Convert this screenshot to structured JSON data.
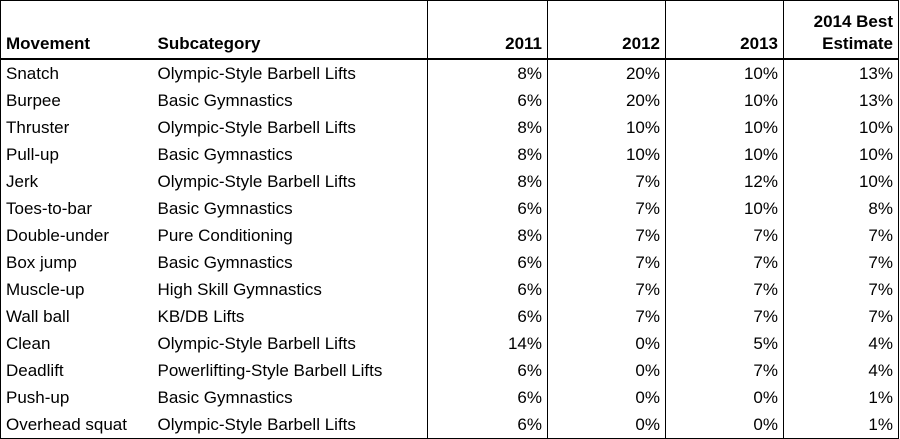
{
  "table": {
    "headers": {
      "movement": "Movement",
      "subcategory": "Subcategory",
      "y2011": "2011",
      "y2012": "2012",
      "y2013": "2013",
      "y2014_line1": "2014 Best",
      "y2014_line2": "Estimate"
    },
    "rows": [
      {
        "movement": "Snatch",
        "subcategory": "Olympic-Style Barbell Lifts",
        "y2011": "8%",
        "y2012": "20%",
        "y2013": "10%",
        "y2014": "13%"
      },
      {
        "movement": "Burpee",
        "subcategory": "Basic Gymnastics",
        "y2011": "6%",
        "y2012": "20%",
        "y2013": "10%",
        "y2014": "13%"
      },
      {
        "movement": "Thruster",
        "subcategory": "Olympic-Style Barbell Lifts",
        "y2011": "8%",
        "y2012": "10%",
        "y2013": "10%",
        "y2014": "10%"
      },
      {
        "movement": "Pull-up",
        "subcategory": "Basic Gymnastics",
        "y2011": "8%",
        "y2012": "10%",
        "y2013": "10%",
        "y2014": "10%"
      },
      {
        "movement": "Jerk",
        "subcategory": "Olympic-Style Barbell Lifts",
        "y2011": "8%",
        "y2012": "7%",
        "y2013": "12%",
        "y2014": "10%"
      },
      {
        "movement": "Toes-to-bar",
        "subcategory": "Basic Gymnastics",
        "y2011": "6%",
        "y2012": "7%",
        "y2013": "10%",
        "y2014": "8%"
      },
      {
        "movement": "Double-under",
        "subcategory": "Pure Conditioning",
        "y2011": "8%",
        "y2012": "7%",
        "y2013": "7%",
        "y2014": "7%"
      },
      {
        "movement": "Box jump",
        "subcategory": "Basic Gymnastics",
        "y2011": "6%",
        "y2012": "7%",
        "y2013": "7%",
        "y2014": "7%"
      },
      {
        "movement": "Muscle-up",
        "subcategory": "High Skill Gymnastics",
        "y2011": "6%",
        "y2012": "7%",
        "y2013": "7%",
        "y2014": "7%"
      },
      {
        "movement": "Wall ball",
        "subcategory": "KB/DB Lifts",
        "y2011": "6%",
        "y2012": "7%",
        "y2013": "7%",
        "y2014": "7%"
      },
      {
        "movement": "Clean",
        "subcategory": "Olympic-Style Barbell Lifts",
        "y2011": "14%",
        "y2012": "0%",
        "y2013": "5%",
        "y2014": "4%"
      },
      {
        "movement": "Deadlift",
        "subcategory": "Powerlifting-Style Barbell Lifts",
        "y2011": "6%",
        "y2012": "0%",
        "y2013": "7%",
        "y2014": "4%"
      },
      {
        "movement": "Push-up",
        "subcategory": "Basic Gymnastics",
        "y2011": "6%",
        "y2012": "0%",
        "y2013": "0%",
        "y2014": "1%"
      },
      {
        "movement": "Overhead squat",
        "subcategory": "Olympic-Style Barbell Lifts",
        "y2011": "6%",
        "y2012": "0%",
        "y2013": "0%",
        "y2014": "1%"
      }
    ]
  }
}
